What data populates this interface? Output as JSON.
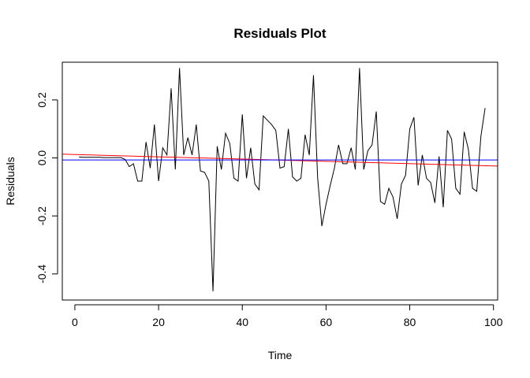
{
  "chart_data": {
    "type": "line",
    "title": "Residuals Plot",
    "xlabel": "Time",
    "ylabel": "Residuals",
    "xlim": [
      -3,
      101
    ],
    "ylim": [
      -0.49,
      0.33
    ],
    "xticks": [
      0,
      20,
      40,
      60,
      80,
      100
    ],
    "yticks": [
      -0.4,
      -0.2,
      0.0,
      0.2
    ],
    "ytick_labels": [
      "-0.4",
      "-0.2",
      "0.0",
      "0.2"
    ],
    "series": [
      {
        "name": "residuals",
        "color": "#000000",
        "x": [
          1,
          2,
          3,
          4,
          5,
          6,
          7,
          8,
          9,
          10,
          11,
          12,
          13,
          14,
          15,
          16,
          17,
          18,
          19,
          20,
          21,
          22,
          23,
          24,
          25,
          26,
          27,
          28,
          29,
          30,
          31,
          32,
          33,
          34,
          35,
          36,
          37,
          38,
          39,
          40,
          41,
          42,
          43,
          44,
          45,
          46,
          47,
          48,
          49,
          50,
          51,
          52,
          53,
          54,
          55,
          56,
          57,
          58,
          59,
          60,
          61,
          62,
          63,
          64,
          65,
          66,
          67,
          68,
          69,
          70,
          71,
          72,
          73,
          74,
          75,
          76,
          77,
          78,
          79,
          80,
          81,
          82,
          83,
          84,
          85,
          86,
          87,
          88,
          89,
          90,
          91,
          92,
          93,
          94,
          95,
          96,
          97,
          98
        ],
        "values": [
          0.003,
          0.002,
          0.002,
          0.002,
          0.002,
          0.002,
          0.001,
          0.001,
          0.001,
          0.001,
          0.001,
          -0.005,
          -0.03,
          -0.02,
          -0.08,
          -0.08,
          0.055,
          -0.035,
          0.115,
          -0.08,
          0.035,
          0.01,
          0.24,
          -0.04,
          0.31,
          0.01,
          0.07,
          0.01,
          0.115,
          -0.045,
          -0.05,
          -0.08,
          -0.46,
          0.04,
          -0.04,
          0.085,
          0.05,
          -0.07,
          -0.08,
          0.15,
          -0.07,
          0.035,
          -0.09,
          -0.11,
          0.145,
          0.13,
          0.115,
          0.095,
          -0.035,
          -0.03,
          0.1,
          -0.065,
          -0.08,
          -0.07,
          0.08,
          0.01,
          0.285,
          -0.07,
          -0.235,
          -0.16,
          -0.095,
          -0.035,
          0.045,
          -0.02,
          -0.02,
          0.035,
          -0.04,
          0.31,
          -0.04,
          0.025,
          0.045,
          0.16,
          -0.15,
          -0.16,
          -0.105,
          -0.135,
          -0.21,
          -0.09,
          -0.06,
          0.1,
          0.14,
          -0.095,
          0.01,
          -0.07,
          -0.085,
          -0.155,
          0.005,
          -0.17,
          0.095,
          0.065,
          -0.105,
          -0.125,
          0.09,
          0.03,
          -0.105,
          -0.115,
          0.075,
          0.172
        ]
      },
      {
        "name": "red-trend",
        "color": "#ff0000",
        "x": [
          -3,
          101
        ],
        "values": [
          0.013,
          -0.028
        ]
      },
      {
        "name": "blue-trend",
        "color": "#0000ff",
        "x": [
          -3,
          101
        ],
        "values": [
          -0.007,
          -0.007
        ]
      }
    ]
  }
}
